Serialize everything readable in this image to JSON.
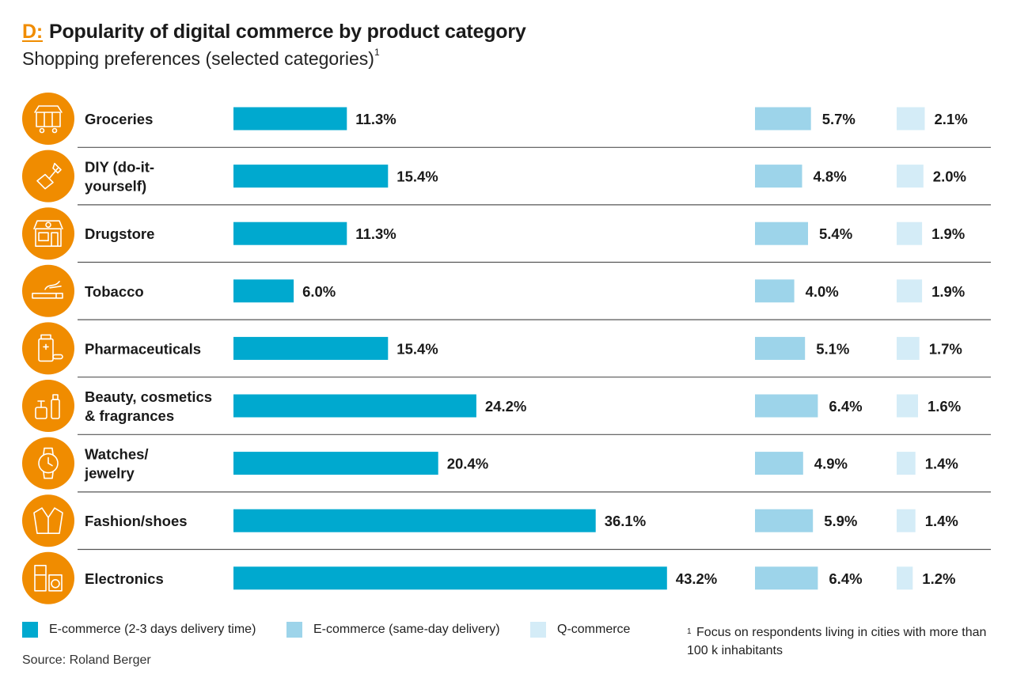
{
  "header": {
    "label": "D:",
    "title": "Popularity of digital commerce by product category",
    "subtitle": "Shopping preferences (selected categories)",
    "subtitle_note": "1"
  },
  "colors": {
    "accent": "#f08c00",
    "icon_bg": "#f08c00",
    "series_ecom": "#00a9cf",
    "series_sameday": "#9dd4ea",
    "series_qcom": "#d4ecf7",
    "divider": "#555555"
  },
  "chart_data": {
    "type": "bar",
    "orientation": "horizontal",
    "title": "Popularity of digital commerce by product category",
    "subtitle": "Shopping preferences (selected categories)",
    "categories": [
      "Groceries",
      "DIY (do-it-\nyourself)",
      "Drugstore",
      "Tobacco",
      "Pharmaceuticals",
      "Beauty, cosmetics\n& fragrances",
      "Watches/\njewelry",
      "Fashion/shoes",
      "Electronics"
    ],
    "icons": [
      "groceries-icon",
      "diy-tool-icon",
      "drugstore-icon",
      "tobacco-icon",
      "pharmaceuticals-icon",
      "beauty-cosmetics-icon",
      "watch-icon",
      "fashion-shoes-icon",
      "electronics-icon"
    ],
    "series": [
      {
        "name": "E-commerce (2-3 days delivery time)",
        "values": [
          11.3,
          15.4,
          11.3,
          6.0,
          15.4,
          24.2,
          20.4,
          36.1,
          43.2
        ]
      },
      {
        "name": "E-commerce (same-day delivery)",
        "values": [
          5.7,
          4.8,
          5.4,
          4.0,
          5.1,
          6.4,
          4.9,
          5.9,
          6.4
        ]
      },
      {
        "name": "Q-commerce",
        "values": [
          2.1,
          2.0,
          1.9,
          1.9,
          1.7,
          1.6,
          1.4,
          1.4,
          1.2
        ]
      }
    ],
    "value_suffix": "%",
    "grid": false,
    "legend_position": "bottom"
  },
  "legend": {
    "items": [
      "E-commerce (2-3 days delivery time)",
      "E-commerce (same-day delivery)",
      "Q-commerce"
    ]
  },
  "footnote": {
    "marker": "1",
    "text": "Focus on respondents living in cities with more than 100 k inhabitants"
  },
  "source": "Source: Roland Berger"
}
